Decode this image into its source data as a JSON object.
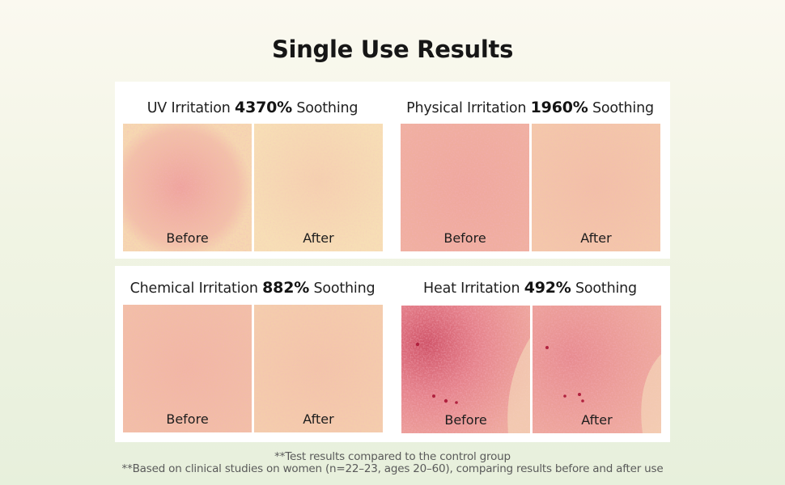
{
  "title": "Single Use Results",
  "tests": [
    {
      "label": "UV Irritation",
      "percent": "4370%",
      "suffix": "Soothing",
      "before_label": "Before",
      "after_label": "After"
    },
    {
      "label": "Physical Irritation",
      "percent": "1960%",
      "suffix": "Soothing",
      "before_label": "Before",
      "after_label": "After"
    },
    {
      "label": "Chemical Irritation",
      "percent": "882%",
      "suffix": "Soothing",
      "before_label": "Before",
      "after_label": "After"
    },
    {
      "label": "Heat Irritation",
      "percent": "492%",
      "suffix": "Soothing",
      "before_label": "Before",
      "after_label": "After"
    }
  ],
  "footnotes": [
    "**Test results compared to the control group",
    "**Based on clinical studies on women (n=22–23, ages 20–60), comparing results before and after use"
  ],
  "colors": {
    "skin_base": "#f7e4b4",
    "irritation": "#e8708a",
    "spot": "#b0213e"
  }
}
